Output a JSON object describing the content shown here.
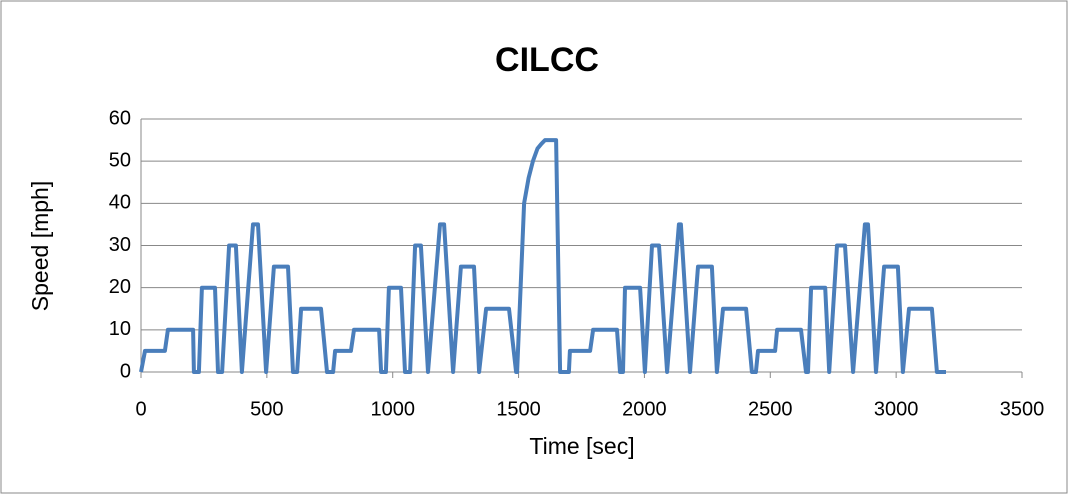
{
  "chart_data": {
    "type": "line",
    "title": "CILCC",
    "x_label": "Time [sec]",
    "y_label": "Speed [mph]",
    "x": [
      0,
      16,
      95,
      107,
      207,
      210,
      230,
      242,
      294,
      306,
      322,
      350,
      377,
      401,
      445,
      453,
      465,
      497,
      528,
      584,
      604,
      620,
      636,
      715,
      739,
      763,
      771,
      834,
      846,
      946,
      954,
      973,
      985,
      1033,
      1049,
      1069,
      1089,
      1112,
      1140,
      1188,
      1204,
      1240,
      1271,
      1323,
      1343,
      1371,
      1462,
      1490,
      1494,
      1508,
      1522,
      1540,
      1557,
      1575,
      1589,
      1605,
      1649,
      1665,
      1700,
      1704,
      1784,
      1796,
      1891,
      1903,
      1915,
      1923,
      1983,
      2002,
      2030,
      2058,
      2090,
      2137,
      2145,
      2181,
      2213,
      2268,
      2288,
      2312,
      2404,
      2427,
      2443,
      2451,
      2519,
      2527,
      2622,
      2642,
      2650,
      2662,
      2718,
      2734,
      2765,
      2797,
      2829,
      2876,
      2888,
      2920,
      2952,
      3007,
      3027,
      3051,
      3142,
      3162,
      3198
    ],
    "values": [
      0,
      5,
      5,
      10,
      10,
      0,
      0,
      20,
      20,
      0,
      0,
      30,
      30,
      0,
      35,
      35,
      35,
      0,
      25,
      25,
      0,
      0,
      15,
      15,
      0,
      0,
      5,
      5,
      10,
      10,
      0,
      0,
      20,
      20,
      0,
      0,
      30,
      30,
      0,
      35,
      35,
      0,
      25,
      25,
      0,
      15,
      15,
      0,
      0,
      20,
      40,
      46,
      50,
      53,
      54,
      55,
      55,
      0,
      0,
      5,
      5,
      10,
      10,
      0,
      0,
      20,
      20,
      0,
      30,
      30,
      0,
      35,
      35,
      0,
      25,
      25,
      0,
      15,
      15,
      0,
      0,
      5,
      5,
      10,
      10,
      0,
      0,
      20,
      20,
      0,
      30,
      30,
      0,
      35,
      35,
      0,
      25,
      25,
      0,
      15,
      15,
      0,
      0
    ],
    "color": "#4a7ebb",
    "xlim": [
      0,
      3500
    ],
    "xticks": [
      0,
      500,
      1000,
      1500,
      2000,
      2500,
      3000,
      3500
    ],
    "ylim": [
      0,
      60
    ],
    "yticks": [
      0,
      10,
      20,
      30,
      40,
      50,
      60
    ],
    "grid": true
  }
}
